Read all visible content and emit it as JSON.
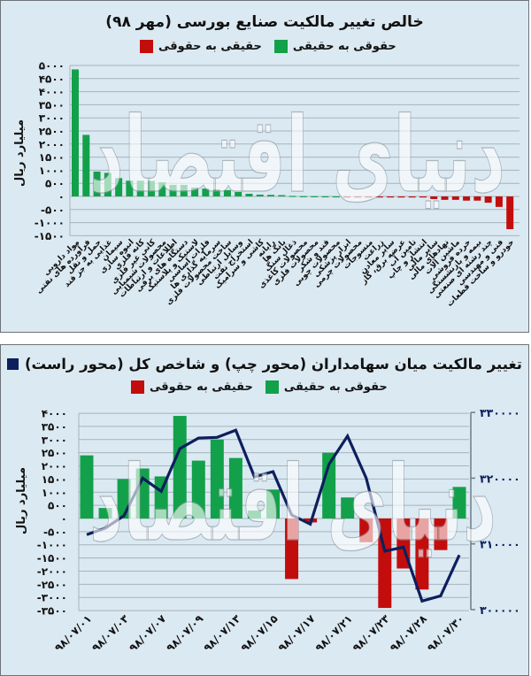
{
  "watermark": "دنیای اقتصاد",
  "top_panel": {
    "title": "خالص تغییر مالکیت صنایع بورسی (مهر ۹۸)",
    "legend": [
      {
        "label": "حقوقی به حقیقی",
        "color": "#12a14a"
      },
      {
        "label": "حقیقی به حقوقی",
        "color": "#c30d0d"
      }
    ],
    "y_axis_title": "میلیارد ریال",
    "y_tick_labels": [
      "۵۰۰۰",
      "۴۵۰۰",
      "۴۰۰۰",
      "۳۵۰۰",
      "۳۰۰۰",
      "۲۵۰۰",
      "۲۰۰۰",
      "۱۵۰۰",
      "۱۰۰۰",
      "۵۰۰",
      "۰",
      "-۵۰۰",
      "-۱۰۰۰",
      "-۱۵۰۰"
    ]
  },
  "bottom_panel": {
    "title": "تغییر مالکیت میان سهامداران (محور چپ) و شاخص کل (محور راست)",
    "title_swatch_color": "#0d1f5c",
    "legend": [
      {
        "label": "حقوقی به حقیقی",
        "color": "#12a14a"
      },
      {
        "label": "حقیقی به حقوقی",
        "color": "#c30d0d"
      }
    ],
    "y_axis_title": "میلیارد ریال",
    "y_tick_labels": [
      "۴۰۰۰",
      "۳۵۰۰",
      "۳۰۰۰",
      "۲۵۰۰",
      "۲۰۰۰",
      "۱۵۰۰",
      "۱۰۰۰",
      "۵۰۰",
      "۰",
      "-۵۰۰",
      "-۱۰۰۰",
      "-۱۵۰۰",
      "-۲۰۰۰",
      "-۲۵۰۰",
      "-۳۰۰۰",
      "-۳۵۰۰"
    ],
    "y2_tick_labels": [
      "۳۳۰۰۰۰",
      "۳۲۰۰۰۰",
      "۳۱۰۰۰۰",
      "۳۰۰۰۰۰"
    ],
    "x_tick_labels": [
      "۹۸/۰۷/۰۱",
      "۹۸/۰۷/۰۳",
      "۹۸/۰۷/۰۷",
      "۹۸/۰۷/۰۹",
      "۹۸/۰۷/۱۳",
      "۹۸/۰۷/۱۵",
      "۹۸/۰۷/۱۷",
      "۹۸/۰۷/۲۱",
      "۹۸/۰۷/۲۳",
      "۹۸/۰۷/۲۸",
      "۹۸/۰۷/۳۰"
    ]
  },
  "chart_data": [
    {
      "type": "bar",
      "title": "خالص تغییر مالکیت صنایع بورسی (مهر ۹۸)",
      "xlabel": "",
      "ylabel": "میلیارد ریال",
      "ylim": [
        -1500,
        5000
      ],
      "yticks_step": 500,
      "grid": true,
      "legend_position": "top",
      "positive_color": "#12a14a",
      "negative_color": "#c30d0d",
      "categories": [
        "مواد دارویی",
        "فرآورده های نفتی",
        "حمل و نقل",
        "غذایی به جز قند",
        "سیمان",
        "انبوه سازی",
        "کانه فلزی",
        "کانی غیر فلزی",
        "محصولات شیمیایی",
        "اطلاعات و ارتباطات",
        "دستگاه های برقی",
        "لاستیک و پلاستیک",
        "فلزات اساسی",
        "سرمایه گذاری ها",
        "ساخت محصولات فلزی",
        "وسایل ارتباطی",
        "استخراج نفت",
        "کاشی و سرامیک",
        "رایانه",
        "بانک ها",
        "ذغال سنگ",
        "محصولات کاغذی",
        "محصولات فلزی",
        "قند و شکر",
        "محصولات چوبی",
        "ابزار پزشکی",
        "محصولات چرمی",
        "منسوجات",
        "زراعت",
        "سایر معادن",
        "عرضه برق، گاز",
        "تامین آب",
        "انتشار و چاپ",
        "سایر مالی",
        "نهادهای مالی",
        "ماشین آلات",
        "خرده فروشی",
        "بیمه و بازنشستگی",
        "چند رشته ای صنعتی",
        "فنی و مهندسی",
        "خودرو و ساخت قطعات"
      ],
      "values": [
        4850,
        2350,
        950,
        900,
        700,
        600,
        600,
        590,
        540,
        440,
        440,
        340,
        300,
        270,
        240,
        170,
        100,
        70,
        60,
        50,
        20,
        10,
        8,
        5,
        3,
        -2,
        -3,
        -5,
        -5,
        -10,
        -10,
        -20,
        -30,
        -100,
        -130,
        -130,
        -160,
        -160,
        -240,
        -400,
        -1250
      ]
    },
    {
      "type": "bar+line",
      "title": "تغییر مالکیت میان سهامداران (محور چپ) و شاخص کل (محور راست)",
      "xlabel": "",
      "ylabel": "میلیارد ریال",
      "ylim": [
        -3500,
        4000
      ],
      "y2lim": [
        300000,
        330000
      ],
      "grid": true,
      "legend_position": "top",
      "x_tick_labels": [
        "۹۸/۰۷/۰۱",
        "۹۸/۰۷/۰۳",
        "۹۸/۰۷/۰۷",
        "۹۸/۰۷/۰۹",
        "۹۸/۰۷/۱۳",
        "۹۸/۰۷/۱۵",
        "۹۸/۰۷/۱۷",
        "۹۸/۰۷/۲۱",
        "۹۸/۰۷/۲۳",
        "۹۸/۰۷/۲۸",
        "۹۸/۰۷/۳۰"
      ],
      "x_tick_every": 2,
      "series": [
        {
          "name": "تغییر مالکیت (حقوقی به حقیقی / حقیقی به حقوقی)",
          "axis": "left",
          "type": "bar",
          "values": [
            2400,
            400,
            1500,
            1900,
            1600,
            3900,
            2200,
            3000,
            2300,
            300,
            1100,
            -2300,
            -150,
            2500,
            800,
            -900,
            -3400,
            -1900,
            -2700,
            -1200,
            1200
          ]
        },
        {
          "name": "شاخص کل",
          "axis": "right",
          "type": "line",
          "color": "#0d1f5c",
          "values": [
            311400,
            312400,
            314300,
            320000,
            318000,
            324500,
            326100,
            326200,
            327300,
            320200,
            321000,
            314400,
            313000,
            322100,
            326400,
            320000,
            308900,
            309500,
            301300,
            302100,
            308300
          ]
        }
      ]
    }
  ]
}
